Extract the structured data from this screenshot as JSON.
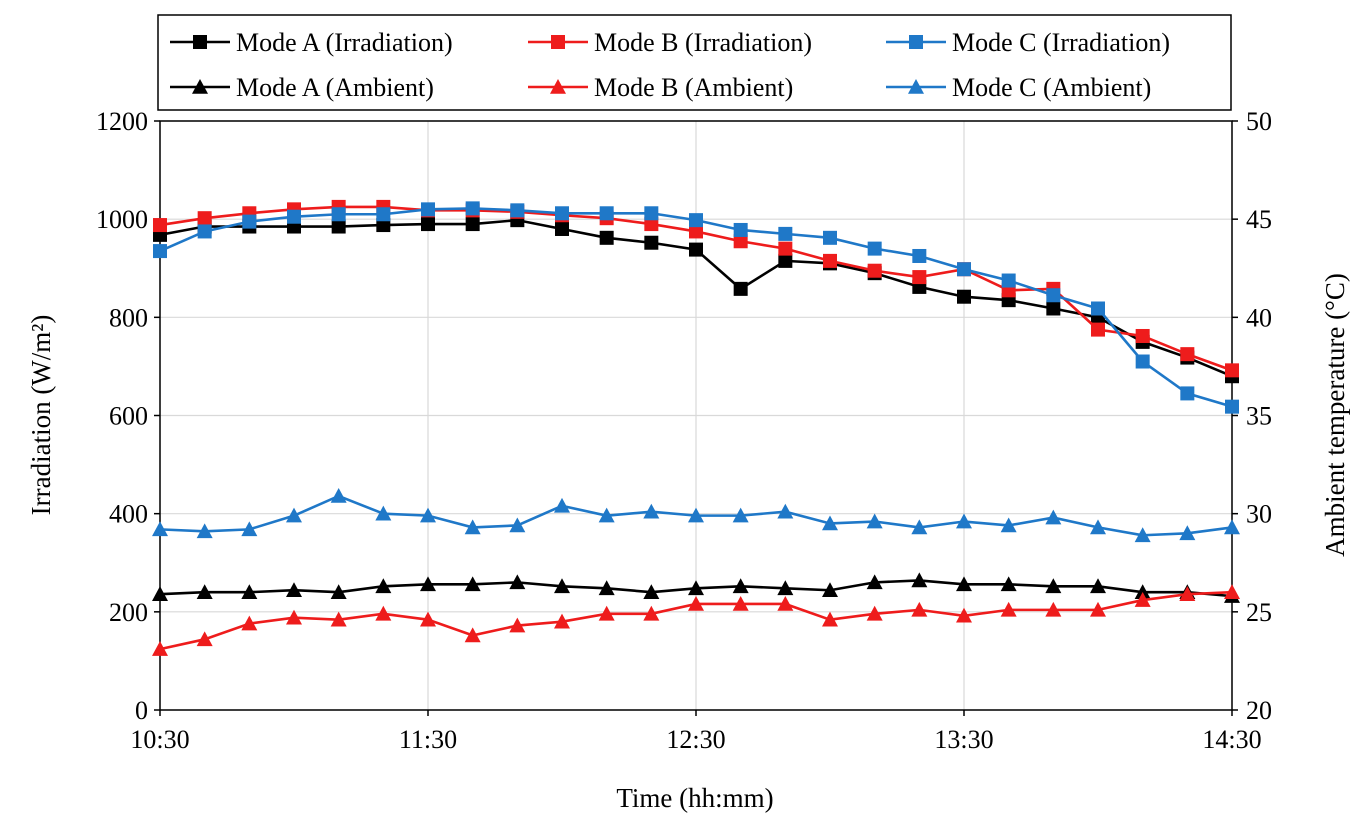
{
  "chart_data": {
    "type": "line",
    "title": "",
    "xlabel": "Time (hh:mm)",
    "ylabel_left": "Irradiation (W/m²)",
    "ylabel_right": "Ambient temperature (°C)",
    "xlim": [
      0,
      240
    ],
    "ylim_left": [
      0,
      1200
    ],
    "ylim_right": [
      20,
      50
    ],
    "x_ticks": [
      {
        "label": "10:30",
        "minute": 0
      },
      {
        "label": "11:30",
        "minute": 60
      },
      {
        "label": "12:30",
        "minute": 120
      },
      {
        "label": "13:30",
        "minute": 180
      },
      {
        "label": "14:30",
        "minute": 240
      }
    ],
    "y_ticks_left": [
      0,
      200,
      400,
      600,
      800,
      1000,
      1200
    ],
    "y_ticks_right": [
      20,
      25,
      30,
      35,
      40,
      45,
      50
    ],
    "grid": true,
    "legend_position": "top",
    "x_minutes": [
      0,
      10,
      20,
      30,
      40,
      50,
      60,
      70,
      80,
      90,
      100,
      110,
      120,
      130,
      140,
      150,
      160,
      170,
      180,
      190,
      200,
      210,
      220,
      230,
      240
    ],
    "series": [
      {
        "name": "Mode A (Irradiation)",
        "axis": "left",
        "marker": "square",
        "color": "#000000",
        "values": [
          968,
          985,
          985,
          985,
          985,
          988,
          990,
          990,
          998,
          980,
          962,
          952,
          938,
          858,
          915,
          910,
          890,
          862,
          842,
          835,
          818,
          800,
          750,
          718,
          680
        ]
      },
      {
        "name": "Mode B (Irradiation)",
        "axis": "left",
        "marker": "square",
        "color": "#ee1c1c",
        "values": [
          988,
          1002,
          1012,
          1020,
          1025,
          1025,
          1018,
          1018,
          1015,
          1008,
          1002,
          990,
          975,
          955,
          940,
          915,
          895,
          882,
          898,
          855,
          858,
          775,
          762,
          725,
          692
        ]
      },
      {
        "name": "Mode C (Irradiation)",
        "axis": "left",
        "marker": "square",
        "color": "#1f78c8",
        "values": [
          935,
          975,
          995,
          1005,
          1010,
          1010,
          1020,
          1022,
          1018,
          1012,
          1012,
          1012,
          998,
          978,
          970,
          962,
          940,
          925,
          898,
          875,
          845,
          818,
          710,
          645,
          618
        ]
      },
      {
        "name": "Mode A (Ambient)",
        "axis": "right",
        "marker": "triangle",
        "color": "#000000",
        "values": [
          25.9,
          26.0,
          26.0,
          26.1,
          26.0,
          26.3,
          26.4,
          26.4,
          26.5,
          26.3,
          26.2,
          26.0,
          26.2,
          26.3,
          26.2,
          26.1,
          26.5,
          26.6,
          26.4,
          26.4,
          26.3,
          26.3,
          26.0,
          26.0,
          25.8
        ]
      },
      {
        "name": "Mode B (Ambient)",
        "axis": "right",
        "marker": "triangle",
        "color": "#ee1c1c",
        "values": [
          23.1,
          23.6,
          24.4,
          24.7,
          24.6,
          24.9,
          24.6,
          23.8,
          24.3,
          24.5,
          24.9,
          24.9,
          25.4,
          25.4,
          25.4,
          24.6,
          24.9,
          25.1,
          24.8,
          25.1,
          25.1,
          25.1,
          25.6,
          25.9,
          26.0
        ]
      },
      {
        "name": "Mode C (Ambient)",
        "axis": "right",
        "marker": "triangle",
        "color": "#1f78c8",
        "values": [
          29.2,
          29.1,
          29.2,
          29.9,
          30.9,
          30.0,
          29.9,
          29.3,
          29.4,
          30.4,
          29.9,
          30.1,
          29.9,
          29.9,
          30.1,
          29.5,
          29.6,
          29.3,
          29.6,
          29.4,
          29.8,
          29.3,
          28.9,
          29.0,
          29.3
        ]
      }
    ]
  }
}
